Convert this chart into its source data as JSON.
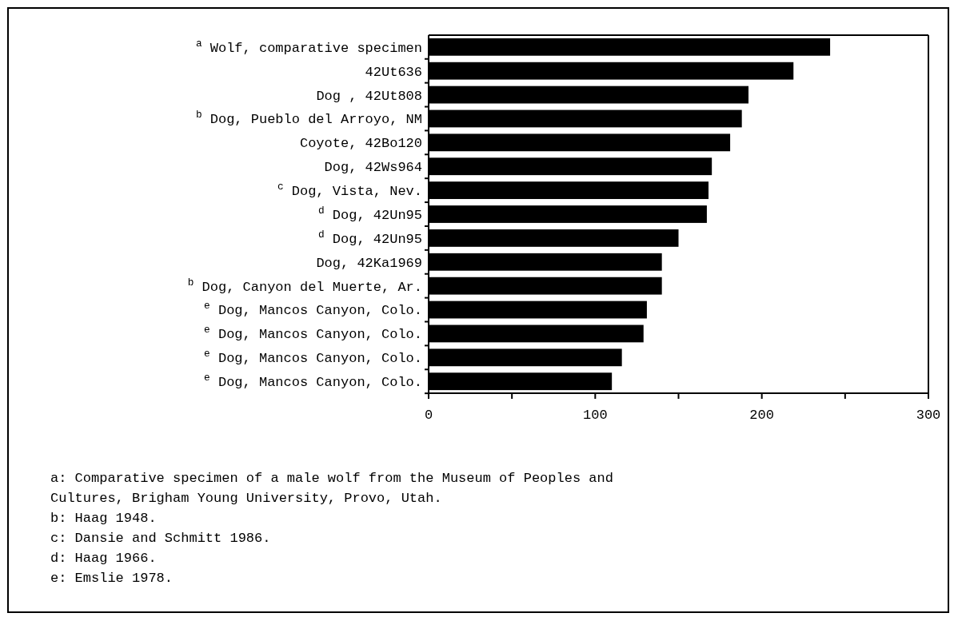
{
  "chart_data": {
    "type": "bar",
    "orientation": "horizontal",
    "categories": [
      "$^{a}$ Wolf, comparative specimen",
      "42Ut636",
      "Dog , 42Ut808",
      "$^{b}$ Dog, Pueblo del Arroyo, NM",
      "Coyote, 42Bo120",
      "Dog, 42Ws964",
      "$^{c}$ Dog, Vista,  Nev.",
      "$^{d}$ Dog, 42Un95",
      "$^{d}$ Dog, 42Un95",
      "Dog, 42Ka1969",
      "$^{b}$ Dog, Canyon del Muerte, Ar.",
      "$^{e}$ Dog, Mancos Canyon, Colo.",
      "$^{e}$ Dog, Mancos Canyon, Colo.",
      "$^{e}$ Dog, Mancos Canyon, Colo.",
      "$^{e}$ Dog, Mancos Canyon, Colo."
    ],
    "values": [
      241,
      219,
      192,
      188,
      181,
      170,
      168,
      167,
      150,
      140,
      140,
      131,
      129,
      116,
      110
    ],
    "color": "#000000",
    "xlim": [
      0,
      300
    ],
    "xticks": [
      0,
      {
        "value": 50,
        "label": null
      },
      100,
      {
        "value": 150,
        "label": null
      },
      200,
      {
        "value": 250,
        "label": null
      },
      300
    ],
    "grid": false,
    "annotations": [
      "a: Comparative specimen of a male wolf from the Museum of Peoples and Cultures, Brigham Young University, Provo, Utah.",
      "b: Haag 1948.",
      "c: Dansie and Schmitt 1986.",
      "d: Haag 1966.",
      "e: Emslie 1978."
    ]
  }
}
